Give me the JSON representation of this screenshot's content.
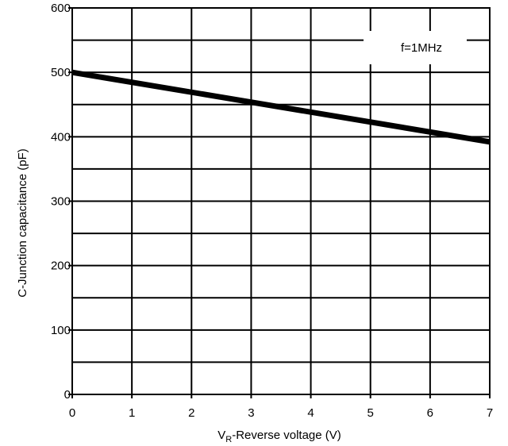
{
  "chart_data": {
    "type": "line",
    "title": "",
    "xlabel": {
      "prefix": "V",
      "subscript": "R",
      "suffix": "-Reverse voltage (V)"
    },
    "ylabel": "C-Junction capacitance (pF)",
    "xlim": [
      0,
      7
    ],
    "ylim": [
      0,
      600
    ],
    "x_ticks": [
      0,
      1,
      2,
      3,
      4,
      5,
      6,
      7
    ],
    "x_tick_labels": [
      "0",
      "1",
      "2",
      "3",
      "4",
      "5",
      "6",
      "7"
    ],
    "y_ticks": [
      0,
      100,
      200,
      300,
      400,
      500,
      600
    ],
    "y_tick_labels": [
      "0",
      "100",
      "200",
      "300",
      "400",
      "500",
      "600"
    ],
    "x_grid": [
      1,
      2,
      3,
      4,
      5,
      6
    ],
    "y_grid": [
      50,
      100,
      150,
      200,
      250,
      300,
      350,
      400,
      450,
      500,
      550
    ],
    "grid": true,
    "legend": "none",
    "annotation": "f=1MHz",
    "series": [
      {
        "x": [
          0,
          7
        ],
        "y": [
          500,
          392
        ]
      }
    ],
    "colors": {
      "line": "#000000",
      "grid": "#000000",
      "background": "#ffffff",
      "annotation_box": "#ffffff"
    }
  }
}
